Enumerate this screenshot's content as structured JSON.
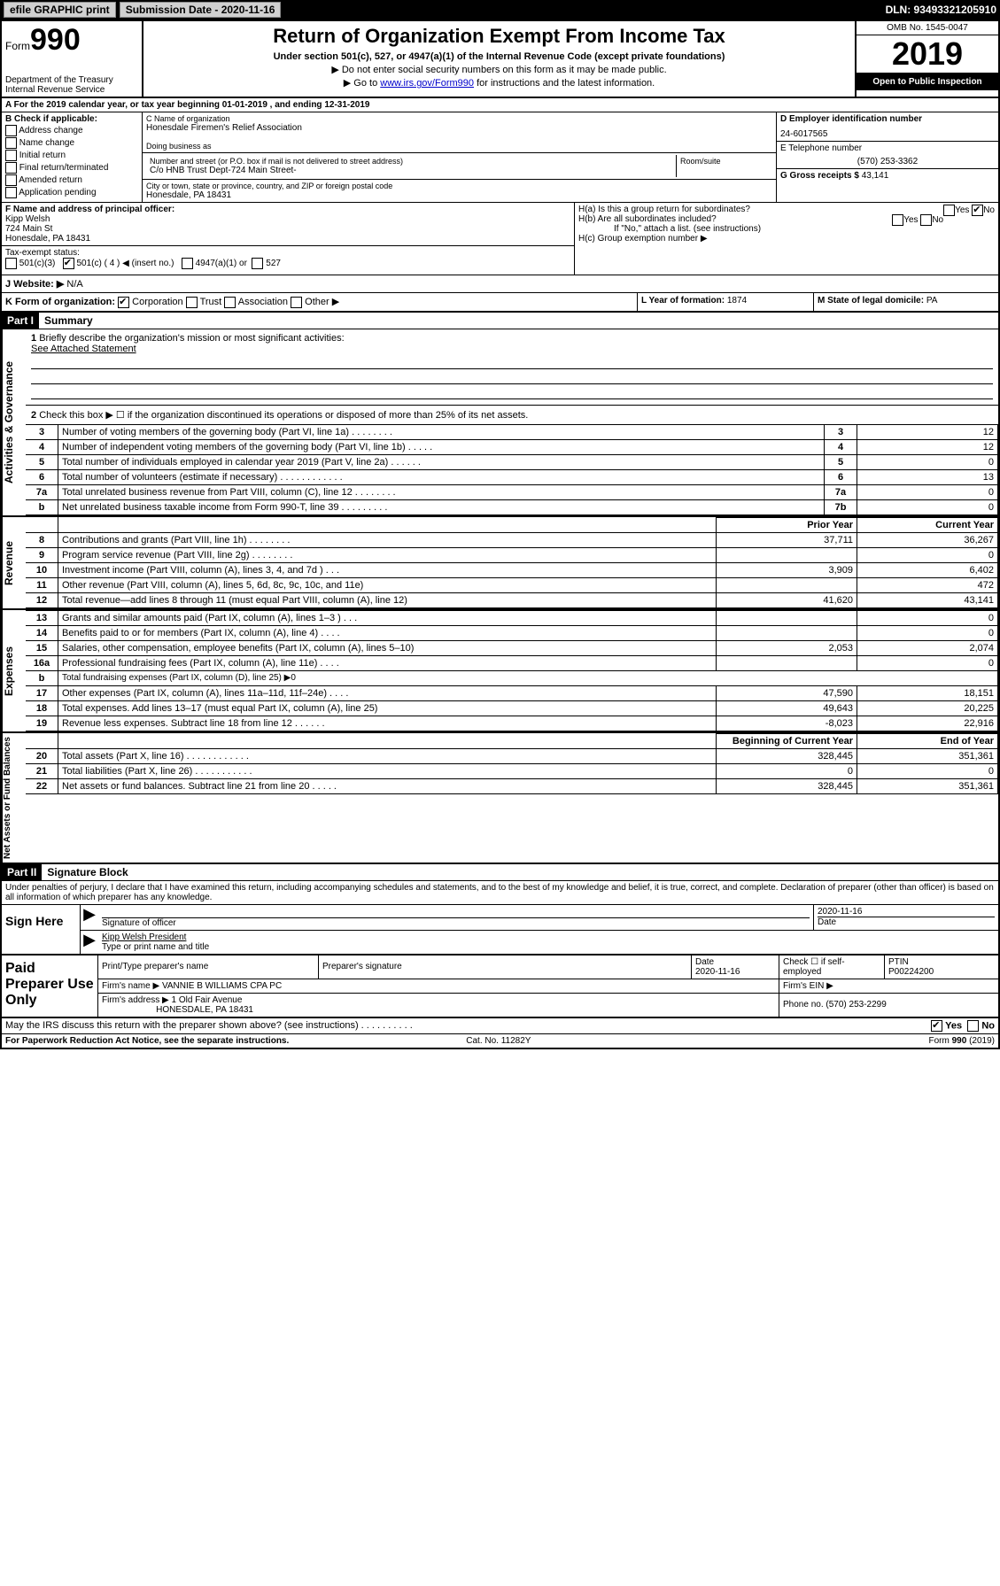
{
  "topbar": {
    "efile": "efile GRAPHIC print",
    "subdate_label": "Submission Date - 2020-11-16",
    "dln": "DLN: 93493321205910"
  },
  "header": {
    "form_word": "Form",
    "form_no": "990",
    "dept": "Department of the Treasury\nInternal Revenue Service",
    "title": "Return of Organization Exempt From Income Tax",
    "sub1": "Under section 501(c), 527, or 4947(a)(1) of the Internal Revenue Code (except private foundations)",
    "sub2": "▶ Do not enter social security numbers on this form as it may be made public.",
    "sub3_pre": "▶ Go to ",
    "sub3_link": "www.irs.gov/Form990",
    "sub3_post": " for instructions and the latest information.",
    "omb": "OMB No. 1545-0047",
    "year": "2019",
    "open": "Open to Public Inspection"
  },
  "lineA": "A  For the 2019 calendar year, or tax year beginning 01-01-2019     , and ending 12-31-2019",
  "boxB": {
    "title": "B Check if applicable:",
    "items": [
      "Address change",
      "Name change",
      "Initial return",
      "Final return/terminated",
      "Amended return",
      "Application pending"
    ]
  },
  "boxC": {
    "name_label": "C Name of organization",
    "name": "Honesdale Firemen's Relief Association",
    "dba_label": "Doing business as",
    "addr_label": "Number and street (or P.O. box if mail is not delivered to street address)",
    "addr": "C/o HNB Trust Dept-724 Main Street-",
    "suite_label": "Room/suite",
    "city_label": "City or town, state or province, country, and ZIP or foreign postal code",
    "city": "Honesdale, PA  18431"
  },
  "boxD": {
    "label": "D Employer identification number",
    "value": "24-6017565"
  },
  "boxE": {
    "label": "E Telephone number",
    "value": "(570) 253-3362"
  },
  "boxG": {
    "label": "G Gross receipts $",
    "value": "43,141"
  },
  "boxF": {
    "label": "F  Name and address of principal officer:",
    "name": "Kipp Welsh",
    "addr1": "724 Main St",
    "addr2": "Honesdale, PA  18431"
  },
  "boxH": {
    "a": "H(a)  Is this a group return for subordinates?",
    "b": "H(b)  Are all subordinates included?",
    "b_note": "If \"No,\" attach a list. (see instructions)",
    "c": "H(c)  Group exemption number ▶"
  },
  "taxExempt": {
    "label": "Tax-exempt status:",
    "c3": "501(c)(3)",
    "c": "501(c) ( 4 ) ◀ (insert no.)",
    "a1": "4947(a)(1) or",
    "c527": "527"
  },
  "boxJ": {
    "label": "J  Website: ▶",
    "value": "N/A"
  },
  "boxK": {
    "label": "K Form of organization:",
    "corp": "Corporation",
    "trust": "Trust",
    "assoc": "Association",
    "other": "Other ▶"
  },
  "boxL": {
    "label": "L Year of formation:",
    "value": "1874"
  },
  "boxM": {
    "label": "M State of legal domicile:",
    "value": "PA"
  },
  "partI": {
    "tag": "Part I",
    "title": "Summary",
    "sidebar1": "Activities & Governance",
    "sidebar2": "Revenue",
    "sidebar3": "Expenses",
    "sidebar4": "Net Assets or Fund Balances",
    "q1": "Briefly describe the organization's mission or most significant activities:",
    "q1_ans": "See Attached Statement",
    "q2": "Check this box ▶ ☐  if the organization discontinued its operations or disposed of more than 25% of its net assets.",
    "rows_ag": [
      {
        "n": "3",
        "d": "Number of voting members of the governing body (Part VI, line 1a)   .    .    .    .    .    .    .    .",
        "b": "3",
        "v": "12"
      },
      {
        "n": "4",
        "d": "Number of independent voting members of the governing body (Part VI, line 1b)   .    .    .    .    .",
        "b": "4",
        "v": "12"
      },
      {
        "n": "5",
        "d": "Total number of individuals employed in calendar year 2019 (Part V, line 2a)   .    .    .    .    .    .",
        "b": "5",
        "v": "0"
      },
      {
        "n": "6",
        "d": "Total number of volunteers (estimate if necessary)   .    .    .    .    .    .    .    .    .    .    .    .",
        "b": "6",
        "v": "13"
      },
      {
        "n": "7a",
        "d": "Total unrelated business revenue from Part VIII, column (C), line 12   .    .    .    .    .    .    .    .",
        "b": "7a",
        "v": "0"
      },
      {
        "n": "b",
        "d": "Net unrelated business taxable income from Form 990-T, line 39   .    .    .    .    .    .    .    .    .",
        "b": "7b",
        "v": "0"
      }
    ],
    "hdr_prior": "Prior Year",
    "hdr_curr": "Current Year",
    "rows_rev": [
      {
        "n": "8",
        "d": "Contributions and grants (Part VIII, line 1h)   .    .    .    .    .    .    .    .",
        "p": "37,711",
        "c": "36,267"
      },
      {
        "n": "9",
        "d": "Program service revenue (Part VIII, line 2g)   .    .    .    .    .    .    .    .",
        "p": "",
        "c": "0"
      },
      {
        "n": "10",
        "d": "Investment income (Part VIII, column (A), lines 3, 4, and 7d )   .    .    .",
        "p": "3,909",
        "c": "6,402"
      },
      {
        "n": "11",
        "d": "Other revenue (Part VIII, column (A), lines 5, 6d, 8c, 9c, 10c, and 11e)",
        "p": "",
        "c": "472"
      },
      {
        "n": "12",
        "d": "Total revenue—add lines 8 through 11 (must equal Part VIII, column (A), line 12)",
        "p": "41,620",
        "c": "43,141"
      }
    ],
    "rows_exp": [
      {
        "n": "13",
        "d": "Grants and similar amounts paid (Part IX, column (A), lines 1–3 )   .    .    .",
        "p": "",
        "c": "0"
      },
      {
        "n": "14",
        "d": "Benefits paid to or for members (Part IX, column (A), line 4)   .    .    .    .",
        "p": "",
        "c": "0"
      },
      {
        "n": "15",
        "d": "Salaries, other compensation, employee benefits (Part IX, column (A), lines 5–10)",
        "p": "2,053",
        "c": "2,074"
      },
      {
        "n": "16a",
        "d": "Professional fundraising fees (Part IX, column (A), line 11e)   .    .    .    .",
        "p": "",
        "c": "0"
      },
      {
        "n": "b",
        "d": "Total fundraising expenses (Part IX, column (D), line 25) ▶0",
        "p": "—",
        "c": "—"
      },
      {
        "n": "17",
        "d": "Other expenses (Part IX, column (A), lines 11a–11d, 11f–24e)   .    .    .    .",
        "p": "47,590",
        "c": "18,151"
      },
      {
        "n": "18",
        "d": "Total expenses. Add lines 13–17 (must equal Part IX, column (A), line 25)",
        "p": "49,643",
        "c": "20,225"
      },
      {
        "n": "19",
        "d": "Revenue less expenses. Subtract line 18 from line 12   .    .    .    .    .    .",
        "p": "-8,023",
        "c": "22,916"
      }
    ],
    "hdr_beg": "Beginning of Current Year",
    "hdr_end": "End of Year",
    "rows_net": [
      {
        "n": "20",
        "d": "Total assets (Part X, line 16)   .    .    .    .    .    .    .    .    .    .    .    .",
        "p": "328,445",
        "c": "351,361"
      },
      {
        "n": "21",
        "d": "Total liabilities (Part X, line 26)   .    .    .    .    .    .    .    .    .    .    .",
        "p": "0",
        "c": "0"
      },
      {
        "n": "22",
        "d": "Net assets or fund balances. Subtract line 21 from line 20   .    .    .    .    .",
        "p": "328,445",
        "c": "351,361"
      }
    ]
  },
  "partII": {
    "tag": "Part II",
    "title": "Signature Block",
    "perjury": "Under penalties of perjury, I declare that I have examined this return, including accompanying schedules and statements, and to the best of my knowledge and belief, it is true, correct, and complete. Declaration of preparer (other than officer) is based on all information of which preparer has any knowledge.",
    "sign_here": "Sign Here",
    "sig_officer": "Signature of officer",
    "date": "2020-11-16",
    "date_label": "Date",
    "officer_name": "Kipp Welsh  President",
    "type_name": "Type or print name and title",
    "paid": "Paid Preparer Use Only",
    "prep_name_label": "Print/Type preparer's name",
    "prep_sig_label": "Preparer's signature",
    "prep_date_label": "Date",
    "prep_date": "2020-11-16",
    "check_self": "Check ☐ if self-employed",
    "ptin_label": "PTIN",
    "ptin": "P00224200",
    "firm_name_label": "Firm's name     ▶",
    "firm_name": "VANNIE B WILLIAMS CPA PC",
    "firm_ein_label": "Firm's EIN ▶",
    "firm_addr_label": "Firm's address ▶",
    "firm_addr1": "1 Old Fair Avenue",
    "firm_addr2": "HONESDALE, PA  18431",
    "phone_label": "Phone no.",
    "phone": "(570) 253-2299",
    "discuss": "May the IRS discuss this return with the preparer shown above? (see instructions)    .    .    .    .    .    .    .    .    .    .",
    "yes": "Yes",
    "no": "No"
  },
  "footer": {
    "left": "For Paperwork Reduction Act Notice, see the separate instructions.",
    "mid": "Cat. No. 11282Y",
    "right": "Form 990 (2019)"
  }
}
